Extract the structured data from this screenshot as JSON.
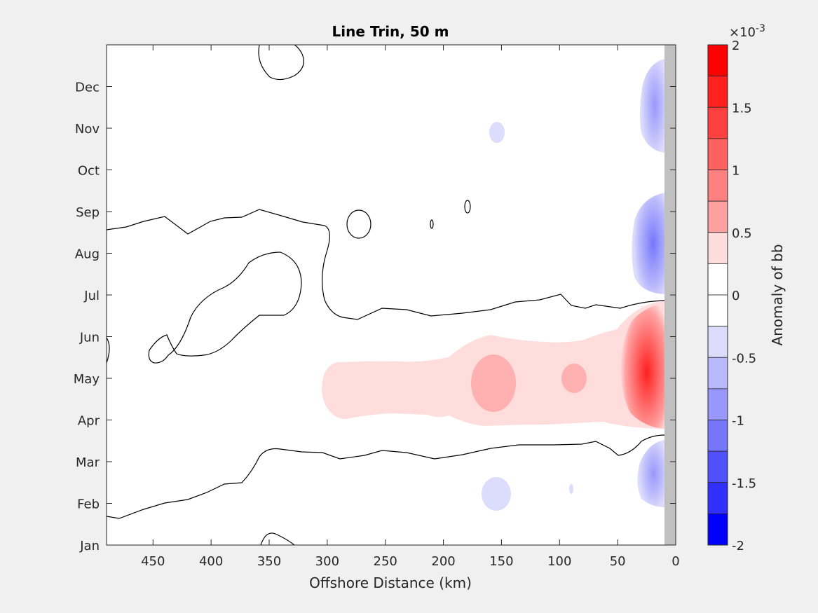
{
  "chart_data": {
    "type": "heatmap",
    "title": "Line Trin, 50 m",
    "xlabel": "Offshore Distance (km)",
    "ylabel": "",
    "x_direction": "reversed",
    "xlim": [
      490,
      0
    ],
    "x_ticks": [
      450,
      400,
      350,
      300,
      250,
      200,
      150,
      100,
      50,
      0
    ],
    "y_ticks": [
      "Jan",
      "Feb",
      "Mar",
      "Apr",
      "May",
      "Jun",
      "Jul",
      "Aug",
      "Sep",
      "Oct",
      "Nov",
      "Dec"
    ],
    "colorbar": {
      "label": "Anomaly of bb",
      "exponent_label": "×10",
      "exponent_power": "-3",
      "range": [
        -2,
        2
      ],
      "tick_labels": [
        "2",
        "1.5",
        "1",
        "0.5",
        "0",
        "-0.5",
        "-1",
        "-1.5",
        "-2"
      ],
      "levels": [
        {
          "min": 1.75,
          "max": 2.0,
          "color": "#ff0000"
        },
        {
          "min": 1.5,
          "max": 1.75,
          "color": "#ff2020"
        },
        {
          "min": 1.25,
          "max": 1.5,
          "color": "#ff4040"
        },
        {
          "min": 1.0,
          "max": 1.25,
          "color": "#ff6060"
        },
        {
          "min": 0.75,
          "max": 1.0,
          "color": "#ff8080"
        },
        {
          "min": 0.5,
          "max": 0.75,
          "color": "#ffa0a0"
        },
        {
          "min": 0.25,
          "max": 0.5,
          "color": "#ffdddd"
        },
        {
          "min": 0.0,
          "max": 0.25,
          "color": "#ffffff"
        },
        {
          "min": -0.25,
          "max": 0.0,
          "color": "#ffffff"
        },
        {
          "min": -0.5,
          "max": -0.25,
          "color": "#dcdcfc"
        },
        {
          "min": -0.75,
          "max": -0.5,
          "color": "#b8b8fc"
        },
        {
          "min": -1.0,
          "max": -0.75,
          "color": "#9898fc"
        },
        {
          "min": -1.25,
          "max": -1.0,
          "color": "#7676fc"
        },
        {
          "min": -1.5,
          "max": -1.25,
          "color": "#5050fc"
        },
        {
          "min": -1.75,
          "max": -1.5,
          "color": "#3030fc"
        },
        {
          "min": -2.0,
          "max": -1.75,
          "color": "#0000ff"
        }
      ]
    },
    "features": [
      {
        "sign": "positive",
        "level_max": 1.75,
        "x_center_km": 10,
        "month": "late May",
        "desc": "strong near-shore positive anomaly"
      },
      {
        "sign": "positive",
        "level_max": 0.75,
        "x_range_km": [
          300,
          10
        ],
        "month_range": [
          "Apr",
          "Jun"
        ],
        "desc": "broad positive band"
      },
      {
        "sign": "negative",
        "level_max": -1.0,
        "x_center_km": 15,
        "month": "Aug",
        "desc": "near-shore negative anomaly"
      },
      {
        "sign": "negative",
        "level_max": -0.5,
        "x_center_km": 15,
        "month": "Dec",
        "desc": "near-shore negative anomaly"
      },
      {
        "sign": "negative",
        "level_max": -0.5,
        "x_center_km": 15,
        "month": "Mar",
        "desc": "near-shore negative anomaly"
      }
    ]
  },
  "colors": {
    "figure_background": "#f0f0f0",
    "axes_background": "#ffffff",
    "land_mask": "#c0c0c0",
    "contour_line": "#000000"
  }
}
